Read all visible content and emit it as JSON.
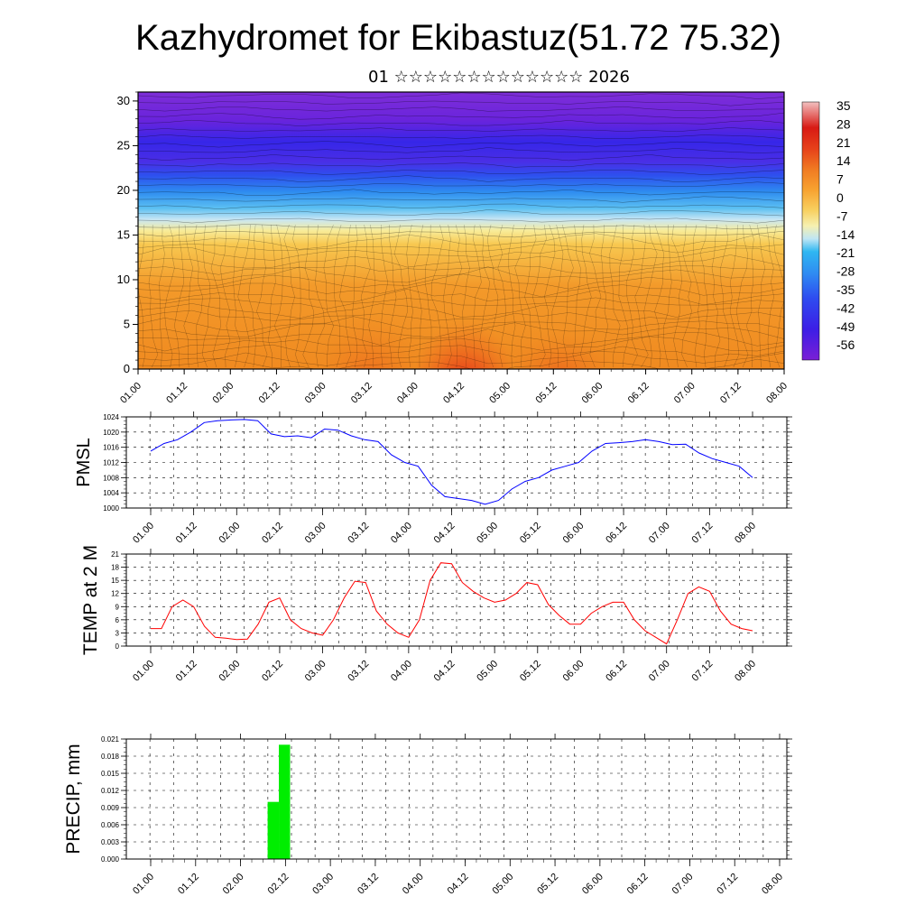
{
  "title": "Kazhydromet for Ekibastuz(51.72 75.32)",
  "subtitle": "01 ☆☆☆☆☆☆☆☆☆☆☆☆☆ 2026",
  "time_ticks": [
    "01.00",
    "01.12",
    "02.00",
    "02.12",
    "03.00",
    "03.12",
    "04.00",
    "04.12",
    "05.00",
    "05.12",
    "06.00",
    "06.12",
    "07.00",
    "07.12",
    "08.00"
  ],
  "chart_data": [
    {
      "type": "heatmap",
      "name": "cross-section",
      "title": "Kazhydromet for Ekibastuz(51.72 75.32)",
      "ylim": [
        0,
        31
      ],
      "yticks": [
        "0",
        "5",
        "10",
        "15",
        "20",
        "25",
        "30"
      ],
      "colorbar_labels": [
        "35",
        "28",
        "21",
        "14",
        "7",
        "0",
        "-7",
        "-14",
        "-21",
        "-28",
        "-35",
        "-42",
        "-49",
        "-56"
      ],
      "colormap": [
        "#7a1fd6",
        "#3c1ee6",
        "#2e4cf0",
        "#2f8ef2",
        "#2fb7f2",
        "#8fd6f2",
        "#f2f2c8",
        "#f7e28a",
        "#f8c24a",
        "#f7a230",
        "#f48a2a",
        "#ef6a1e",
        "#e6401a",
        "#d81a14",
        "#f0b0b0"
      ]
    },
    {
      "type": "line",
      "name": "pmsl",
      "ylabel": "PMSL",
      "ylim": [
        1000,
        1024
      ],
      "yticks": [
        "1000",
        "1004",
        "1008",
        "1012",
        "1016",
        "1020",
        "1024"
      ],
      "color": "#0000ff",
      "values": [
        1015,
        1017,
        1018,
        1020,
        1022.5,
        1023,
        1023.2,
        1023.3,
        1023,
        1019.5,
        1018.8,
        1019,
        1018.5,
        1020.8,
        1020.5,
        1019,
        1018,
        1017.5,
        1014,
        1012,
        1011,
        1006,
        1003,
        1002.5,
        1002,
        1001,
        1002,
        1005,
        1007,
        1008,
        1010,
        1011,
        1012,
        1015,
        1017,
        1017.2,
        1017.5,
        1018,
        1017.5,
        1016.7,
        1016.8,
        1014.5,
        1013,
        1012,
        1011,
        1008
      ]
    },
    {
      "type": "line",
      "name": "temp2m",
      "ylabel": "TEMP at 2 M",
      "ylim": [
        0,
        21
      ],
      "yticks": [
        "0",
        "3",
        "6",
        "9",
        "12",
        "15",
        "18",
        "21"
      ],
      "color": "#ff0000",
      "values": [
        4,
        4,
        9,
        10.5,
        9,
        4.5,
        2,
        1.8,
        1.5,
        1.6,
        5,
        10,
        11,
        6,
        4,
        3,
        2.5,
        6,
        11,
        14.8,
        14.5,
        8,
        5,
        3,
        2,
        6,
        15,
        19,
        18.8,
        14.5,
        12.5,
        11,
        10,
        10.5,
        12,
        14.5,
        14,
        9.5,
        7,
        5,
        5,
        7.5,
        9,
        10,
        10,
        6,
        3.5,
        2,
        0.5,
        6,
        12,
        13.5,
        12.5,
        8,
        5,
        4,
        3.5
      ]
    },
    {
      "type": "bar",
      "name": "precip",
      "ylabel": "PRECIP, mm",
      "ylim": [
        0,
        0.021
      ],
      "yticks": [
        "0.000",
        "0.003",
        "0.006",
        "0.009",
        "0.012",
        "0.015",
        "0.018",
        "0.021"
      ],
      "color": "#00ee00",
      "bars": [
        {
          "slot": 11,
          "value": 0.01
        },
        {
          "slot": 12,
          "value": 0.02
        }
      ]
    }
  ]
}
